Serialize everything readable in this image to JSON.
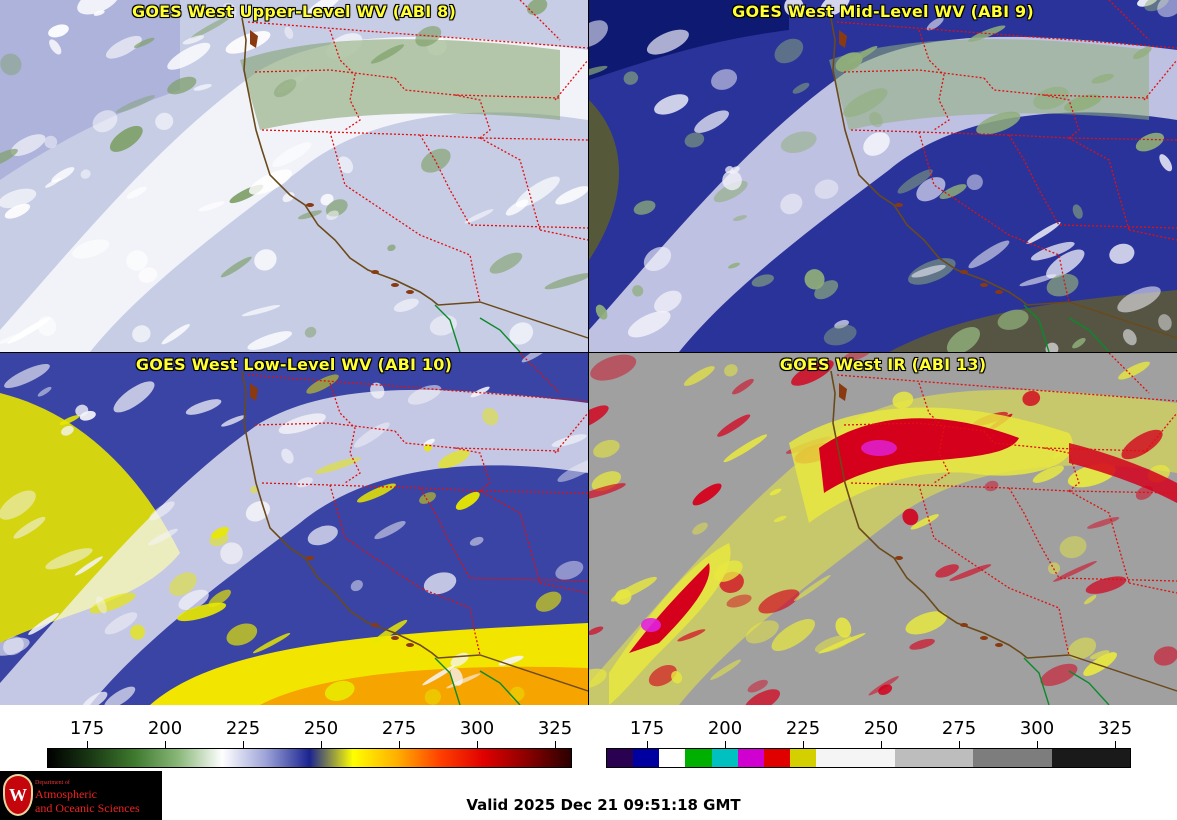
{
  "panels": [
    {
      "title": "GOES West Upper-Level WV (ABI 8)",
      "bg": "#c8cde6",
      "blob1": "#7fa06a",
      "blob2": "#ffffff",
      "dark": "#4a53a8"
    },
    {
      "title": "GOES West Mid-Level WV (ABI 9)",
      "bg": "#2a339a",
      "blob1": "#8fae7a",
      "blob2": "#f2f2fa",
      "dark": "#0f1a7a"
    },
    {
      "title": "GOES West Low-Level WV (ABI 10)",
      "bg": "#3a44a4",
      "blob1": "#e8e800",
      "blob2": "#f4f4fa",
      "dark": "#f0a000"
    },
    {
      "title": "GOES West IR (ABI 13)",
      "bg": "#a0a0a0",
      "blob1": "#d4001c",
      "blob2": "#e8e840",
      "dark": "#ffffff"
    }
  ],
  "colorbar_left": {
    "ticks": [
      "175",
      "200",
      "225",
      "250",
      "275",
      "300",
      "325"
    ],
    "colors": [
      "#000000",
      "#1a3a14",
      "#3f7a2e",
      "#8ab87a",
      "#ffffff",
      "#9da3d8",
      "#1a2490",
      "#ffff00",
      "#ffb000",
      "#ff4000",
      "#e00000",
      "#8a0000",
      "#2a0000"
    ]
  },
  "colorbar_right": {
    "ticks": [
      "175",
      "200",
      "225",
      "250",
      "275",
      "300",
      "325"
    ],
    "segments": [
      "#2a0050",
      "#0000a0",
      "#ffffff",
      "#00b000",
      "#00c0c0",
      "#d000d0",
      "#e00000",
      "#d4d000",
      "#f5f5f5",
      "#bdbdbd",
      "#7d7d7d",
      "#1a1a1a"
    ]
  },
  "logo": {
    "seal": "W",
    "dept": "Department of",
    "line1": "Atmospheric",
    "line2": "and Oceanic Sciences"
  },
  "valid_time": "Valid 2025 Dec 21 09:51:18 GMT"
}
